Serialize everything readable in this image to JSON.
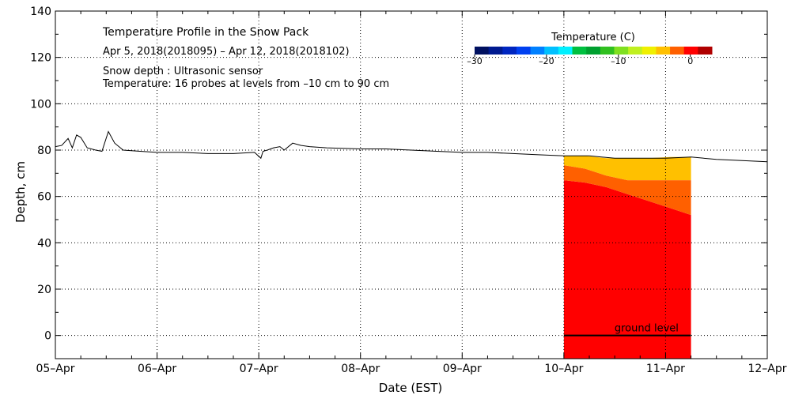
{
  "chart_data": {
    "type": "line",
    "title": "Temperature Profile in the Snow Pack",
    "subtitle": "Apr  5, 2018(2018095) – Apr 12, 2018(2018102)",
    "notes": [
      "Snow depth : Ultrasonic sensor",
      "Temperature: 16 probes at levels from –10 cm to 90 cm"
    ],
    "xlabel": "Date (EST)",
    "ylabel": "Depth, cm",
    "x_ticks": [
      "05–Apr",
      "06–Apr",
      "07–Apr",
      "08–Apr",
      "09–Apr",
      "10–Apr",
      "11–Apr",
      "12–Apr"
    ],
    "y_ticks": [
      "0",
      "20",
      "40",
      "60",
      "80",
      "100",
      "120",
      "140"
    ],
    "xlim": [
      "2018-04-05",
      "2018-04-12"
    ],
    "ylim": [
      -10,
      140
    ],
    "grid": true,
    "colorbar": {
      "title": "Temperature (C)",
      "ticks": [
        "–30",
        "–20",
        "–10",
        "0"
      ],
      "range": [
        -30,
        3
      ],
      "colors": [
        "#001060",
        "#001a90",
        "#0026c0",
        "#0040f0",
        "#0080ff",
        "#00c0ff",
        "#00f0ff",
        "#00c040",
        "#00a030",
        "#30c020",
        "#80e020",
        "#c0f020",
        "#f0f000",
        "#ffc000",
        "#ff6000",
        "#ff0000",
        "#b00000"
      ]
    },
    "annotation": "ground level",
    "ground_level": 0,
    "series": [
      {
        "name": "Snow depth",
        "color": "#000000",
        "points": [
          [
            "2018-04-05 00:00",
            81.5
          ],
          [
            "2018-04-05 01:30",
            82
          ],
          [
            "2018-04-05 03:00",
            85
          ],
          [
            "2018-04-05 04:00",
            81
          ],
          [
            "2018-04-05 05:00",
            86.5
          ],
          [
            "2018-04-05 06:00",
            85.5
          ],
          [
            "2018-04-05 07:30",
            81
          ],
          [
            "2018-04-05 09:30",
            80
          ],
          [
            "2018-04-05 11:00",
            79.5
          ],
          [
            "2018-04-05 12:30",
            88
          ],
          [
            "2018-04-05 14:00",
            83
          ],
          [
            "2018-04-05 16:00",
            80
          ],
          [
            "2018-04-05 20:00",
            79.5
          ],
          [
            "2018-04-06 00:00",
            79
          ],
          [
            "2018-04-06 06:00",
            79
          ],
          [
            "2018-04-06 12:00",
            78.5
          ],
          [
            "2018-04-06 18:00",
            78.5
          ],
          [
            "2018-04-06 23:00",
            79
          ],
          [
            "2018-04-07 00:30",
            76.5
          ],
          [
            "2018-04-07 01:00",
            79.5
          ],
          [
            "2018-04-07 02:00",
            80
          ],
          [
            "2018-04-07 03:30",
            81
          ],
          [
            "2018-04-07 05:00",
            81.5
          ],
          [
            "2018-04-07 06:00",
            80
          ],
          [
            "2018-04-07 08:00",
            83
          ],
          [
            "2018-04-07 10:00",
            82
          ],
          [
            "2018-04-07 12:00",
            81.5
          ],
          [
            "2018-04-07 16:00",
            81
          ],
          [
            "2018-04-08 00:00",
            80.5
          ],
          [
            "2018-04-08 06:00",
            80.5
          ],
          [
            "2018-04-08 12:00",
            80
          ],
          [
            "2018-04-08 18:00",
            79.5
          ],
          [
            "2018-04-09 00:00",
            79
          ],
          [
            "2018-04-09 06:00",
            79
          ],
          [
            "2018-04-09 12:00",
            78.5
          ],
          [
            "2018-04-09 18:00",
            78
          ],
          [
            "2018-04-10 00:00",
            77.5
          ],
          [
            "2018-04-10 06:00",
            77.5
          ],
          [
            "2018-04-10 12:00",
            76.5
          ],
          [
            "2018-04-10 18:00",
            76.5
          ],
          [
            "2018-04-11 00:00",
            76.5
          ],
          [
            "2018-04-11 06:00",
            77
          ],
          [
            "2018-04-11 12:00",
            76
          ],
          [
            "2018-04-11 18:00",
            75.5
          ],
          [
            "2018-04-12 00:00",
            75
          ]
        ]
      }
    ],
    "temperature_profile": {
      "start": "2018-04-10 00:00",
      "end": "2018-04-11 06:00",
      "bands": [
        {
          "temperature": 0,
          "color": "#ff0000",
          "top": [
            67,
            66,
            64,
            61,
            58,
            55,
            52
          ],
          "bottom": [
            -10,
            -10,
            -10,
            -10,
            -10,
            -10,
            -10
          ]
        },
        {
          "temperature": 1,
          "color": "#ff6000",
          "top": [
            73.5,
            72,
            69,
            67,
            67,
            67,
            67
          ],
          "bottom": [
            67,
            66,
            64,
            61,
            58,
            55,
            52
          ]
        },
        {
          "temperature": 2,
          "color": "#ffc000",
          "top": [
            77.5,
            77.5,
            76.5,
            76.5,
            76.5,
            77,
            77
          ],
          "bottom": [
            73.5,
            72,
            69,
            67,
            67,
            67,
            67
          ]
        }
      ]
    }
  }
}
